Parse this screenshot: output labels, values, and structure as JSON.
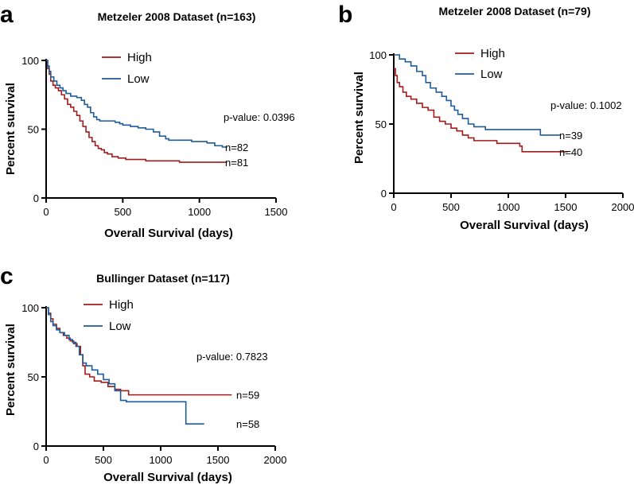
{
  "chart_data": [
    {
      "panel": "a",
      "type": "line",
      "title": "Metzeler 2008 Dataset (n=163)",
      "xlabel": "Overall Survival (days)",
      "ylabel": "Percent survival",
      "xlim": [
        0,
        1500
      ],
      "ylim": [
        0,
        100
      ],
      "xticks": [
        "0",
        "500",
        "1000",
        "1500"
      ],
      "yticks": [
        "0",
        "50",
        "100"
      ],
      "legend": [
        "High",
        "Low"
      ],
      "annotation": "p-value: 0.0396",
      "series": [
        {
          "name": "High",
          "color": "#a31c1c",
          "n_label": "n=81",
          "points": [
            [
              0,
              100
            ],
            [
              10,
              94
            ],
            [
              20,
              90
            ],
            [
              30,
              85
            ],
            [
              45,
              82
            ],
            [
              60,
              80
            ],
            [
              80,
              78
            ],
            [
              100,
              75
            ],
            [
              120,
              72
            ],
            [
              140,
              68
            ],
            [
              160,
              66
            ],
            [
              180,
              63
            ],
            [
              200,
              60
            ],
            [
              220,
              56
            ],
            [
              240,
              52
            ],
            [
              260,
              48
            ],
            [
              280,
              44
            ],
            [
              300,
              41
            ],
            [
              320,
              38
            ],
            [
              340,
              36
            ],
            [
              360,
              35
            ],
            [
              380,
              33
            ],
            [
              400,
              32
            ],
            [
              430,
              30
            ],
            [
              470,
              29
            ],
            [
              520,
              28
            ],
            [
              600,
              28
            ],
            [
              650,
              27
            ],
            [
              700,
              27
            ],
            [
              800,
              27
            ],
            [
              870,
              26
            ],
            [
              1000,
              26
            ],
            [
              1180,
              26
            ]
          ]
        },
        {
          "name": "Low",
          "color": "#1f5c99",
          "n_label": "n=82",
          "points": [
            [
              0,
              100
            ],
            [
              10,
              96
            ],
            [
              20,
              92
            ],
            [
              30,
              88
            ],
            [
              50,
              85
            ],
            [
              70,
              82
            ],
            [
              90,
              80
            ],
            [
              110,
              78
            ],
            [
              130,
              76
            ],
            [
              160,
              74
            ],
            [
              200,
              73
            ],
            [
              230,
              71
            ],
            [
              250,
              68
            ],
            [
              270,
              66
            ],
            [
              290,
              62
            ],
            [
              310,
              59
            ],
            [
              330,
              57
            ],
            [
              350,
              56
            ],
            [
              400,
              56
            ],
            [
              450,
              55
            ],
            [
              480,
              54
            ],
            [
              500,
              53
            ],
            [
              550,
              52
            ],
            [
              600,
              51
            ],
            [
              650,
              50
            ],
            [
              700,
              48
            ],
            [
              740,
              45
            ],
            [
              780,
              43
            ],
            [
              800,
              42
            ],
            [
              900,
              42
            ],
            [
              950,
              41
            ],
            [
              1000,
              41
            ],
            [
              1050,
              40
            ],
            [
              1100,
              38
            ],
            [
              1150,
              37
            ],
            [
              1180,
              37
            ]
          ]
        }
      ]
    },
    {
      "panel": "b",
      "type": "line",
      "title": "Metzeler 2008 Dataset (n=79)",
      "xlabel": "Overall Survival (days)",
      "ylabel": "Percent survival",
      "xlim": [
        0,
        2000
      ],
      "ylim": [
        0,
        100
      ],
      "xticks": [
        "0",
        "500",
        "1000",
        "1500",
        "2000"
      ],
      "yticks": [
        "0",
        "50",
        "100"
      ],
      "legend": [
        "High",
        "Low"
      ],
      "annotation": "p-value: 0.1002",
      "series": [
        {
          "name": "High",
          "color": "#a31c1c",
          "n_label": "n=40",
          "points": [
            [
              0,
              90
            ],
            [
              15,
              85
            ],
            [
              30,
              80
            ],
            [
              50,
              77
            ],
            [
              80,
              73
            ],
            [
              110,
              70
            ],
            [
              150,
              68
            ],
            [
              200,
              65
            ],
            [
              250,
              62
            ],
            [
              300,
              60
            ],
            [
              350,
              55
            ],
            [
              400,
              52
            ],
            [
              450,
              50
            ],
            [
              500,
              47
            ],
            [
              550,
              45
            ],
            [
              600,
              42
            ],
            [
              650,
              40
            ],
            [
              700,
              38
            ],
            [
              800,
              38
            ],
            [
              900,
              36
            ],
            [
              1000,
              36
            ],
            [
              1100,
              34
            ],
            [
              1120,
              30
            ],
            [
              1300,
              30
            ],
            [
              1520,
              30
            ]
          ]
        },
        {
          "name": "Low",
          "color": "#1f5c99",
          "n_label": "n=39",
          "points": [
            [
              0,
              100
            ],
            [
              50,
              97
            ],
            [
              100,
              95
            ],
            [
              150,
              92
            ],
            [
              200,
              88
            ],
            [
              250,
              85
            ],
            [
              280,
              80
            ],
            [
              320,
              76
            ],
            [
              370,
              73
            ],
            [
              420,
              70
            ],
            [
              460,
              67
            ],
            [
              500,
              63
            ],
            [
              530,
              60
            ],
            [
              560,
              57
            ],
            [
              600,
              54
            ],
            [
              650,
              50
            ],
            [
              700,
              48
            ],
            [
              800,
              46
            ],
            [
              900,
              46
            ],
            [
              1000,
              46
            ],
            [
              1100,
              46
            ],
            [
              1280,
              42
            ],
            [
              1450,
              42
            ]
          ]
        }
      ]
    },
    {
      "panel": "c",
      "type": "line",
      "title": "Bullinger Dataset (n=117)",
      "xlabel": "Overall Survival (days)",
      "ylabel": "Percent survival",
      "xlim": [
        0,
        2000
      ],
      "ylim": [
        0,
        100
      ],
      "xticks": [
        "0",
        "500",
        "1000",
        "1500",
        "2000"
      ],
      "yticks": [
        "0",
        "50",
        "100"
      ],
      "legend": [
        "High",
        "Low"
      ],
      "annotation": "p-value: 0.7823",
      "series": [
        {
          "name": "High",
          "color": "#a31c1c",
          "n_label": "n=59",
          "points": [
            [
              0,
              100
            ],
            [
              20,
              96
            ],
            [
              40,
              92
            ],
            [
              60,
              88
            ],
            [
              90,
              85
            ],
            [
              120,
              82
            ],
            [
              150,
              80
            ],
            [
              180,
              78
            ],
            [
              210,
              76
            ],
            [
              240,
              74
            ],
            [
              270,
              72
            ],
            [
              300,
              66
            ],
            [
              320,
              58
            ],
            [
              340,
              52
            ],
            [
              380,
              50
            ],
            [
              420,
              47
            ],
            [
              480,
              46
            ],
            [
              540,
              43
            ],
            [
              600,
              41
            ],
            [
              650,
              40
            ],
            [
              700,
              40
            ],
            [
              720,
              37
            ],
            [
              900,
              37
            ],
            [
              1200,
              37
            ],
            [
              1620,
              37
            ]
          ]
        },
        {
          "name": "Low",
          "color": "#1f5c99",
          "n_label": "n=58",
          "points": [
            [
              0,
              100
            ],
            [
              20,
              95
            ],
            [
              40,
              90
            ],
            [
              60,
              87
            ],
            [
              90,
              84
            ],
            [
              120,
              82
            ],
            [
              160,
              80
            ],
            [
              200,
              77
            ],
            [
              230,
              75
            ],
            [
              260,
              72
            ],
            [
              290,
              66
            ],
            [
              320,
              60
            ],
            [
              350,
              58
            ],
            [
              400,
              55
            ],
            [
              450,
              52
            ],
            [
              500,
              48
            ],
            [
              550,
              45
            ],
            [
              600,
              40
            ],
            [
              650,
              33
            ],
            [
              700,
              32
            ],
            [
              800,
              32
            ],
            [
              1000,
              32
            ],
            [
              1200,
              32
            ],
            [
              1220,
              16
            ],
            [
              1380,
              16
            ]
          ]
        }
      ]
    }
  ]
}
